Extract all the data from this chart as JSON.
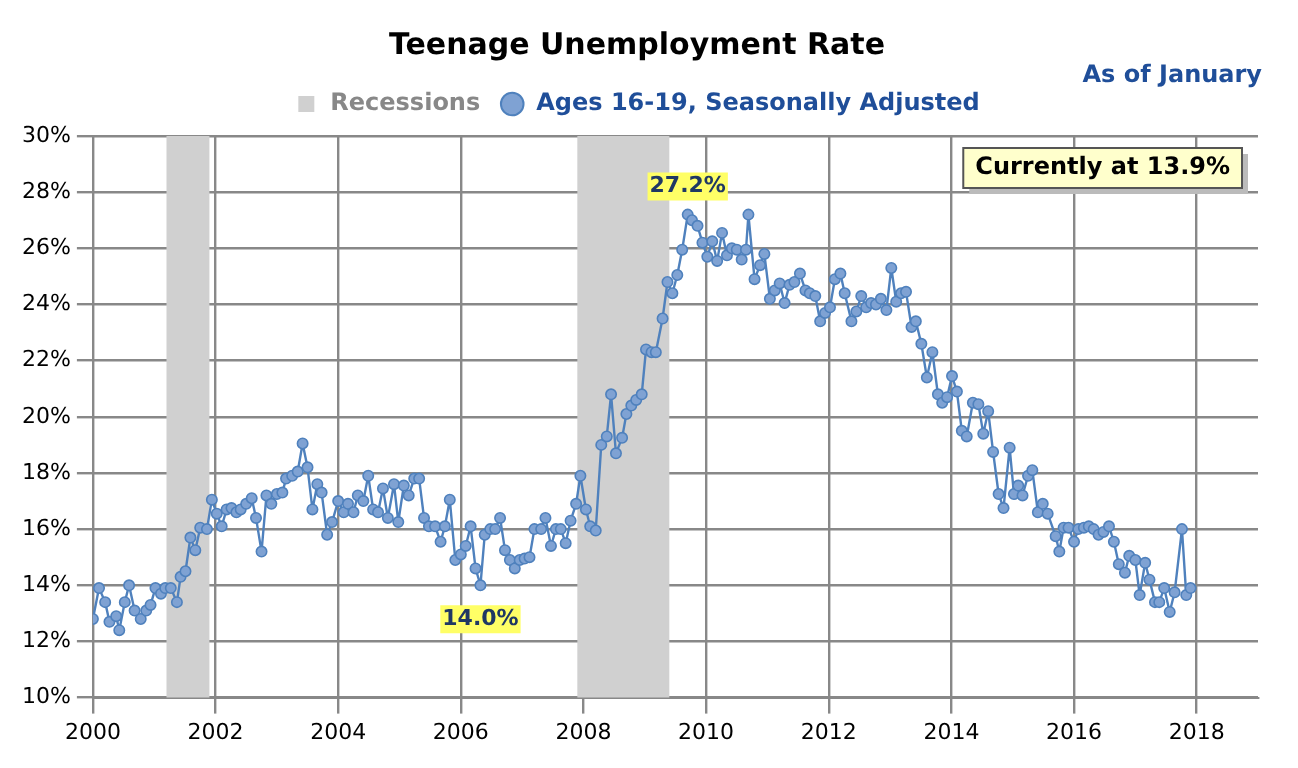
{
  "chart_data": {
    "type": "line",
    "title": "Teenage Unemployment Rate",
    "subtitle": "As of January",
    "annotations": [
      {
        "text": "14.0%",
        "x": 2006.32,
        "y": 14.0
      },
      {
        "text": "27.2%",
        "x": 2009.7,
        "y": 27.2
      },
      "Currently at 13.9%"
    ],
    "bands": [
      {
        "axis": "x",
        "from": 2001.2,
        "to": 2001.9,
        "label": "Recessions",
        "color": "#d0d0d0"
      },
      {
        "axis": "x",
        "from": 2007.9,
        "to": 2009.4,
        "color": "#d0d0d0"
      }
    ],
    "series": [
      {
        "name": "Ages 16-19, Seasonally Adjusted",
        "color": "#4f81bd",
        "x": [
          2000.0,
          2000.1,
          2000.2,
          2000.27,
          2000.38,
          2000.43,
          2000.52,
          2000.59,
          2000.68,
          2000.78,
          2000.87,
          2000.94,
          2001.02,
          2001.11,
          2001.18,
          2001.27,
          2001.37,
          2001.43,
          2001.51,
          2001.59,
          2001.67,
          2001.75,
          2001.86,
          2001.94,
          2002.02,
          2002.1,
          2002.18,
          2002.26,
          2002.34,
          2002.41,
          2002.5,
          2002.59,
          2002.66,
          2002.75,
          2002.83,
          2002.91,
          2003.0,
          2003.09,
          2003.15,
          2003.25,
          2003.34,
          2003.42,
          2003.5,
          2003.58,
          2003.66,
          2003.73,
          2003.82,
          2003.9,
          2004.0,
          2004.09,
          2004.16,
          2004.25,
          2004.32,
          2004.41,
          2004.49,
          2004.57,
          2004.65,
          2004.73,
          2004.81,
          2004.91,
          2004.98,
          2005.07,
          2005.15,
          2005.24,
          2005.32,
          2005.4,
          2005.48,
          2005.58,
          2005.67,
          2005.74,
          2005.82,
          2005.91,
          2006.0,
          2006.08,
          2006.16,
          2006.24,
          2006.32,
          2006.39,
          2006.48,
          2006.56,
          2006.64,
          2006.72,
          2006.8,
          2006.88,
          2006.96,
          2007.04,
          2007.12,
          2007.2,
          2007.31,
          2007.38,
          2007.47,
          2007.55,
          2007.63,
          2007.71,
          2007.79,
          2007.88,
          2007.95,
          2008.04,
          2008.11,
          2008.2,
          2008.29,
          2008.38,
          2008.45,
          2008.53,
          2008.63,
          2008.7,
          2008.78,
          2008.86,
          2008.95,
          2009.02,
          2009.11,
          2009.18,
          2009.29,
          2009.37,
          2009.45,
          2009.53,
          2009.61,
          2009.7,
          2009.77,
          2009.86,
          2009.94,
          2010.02,
          2010.1,
          2010.18,
          2010.26,
          2010.34,
          2010.42,
          2010.5,
          2010.58,
          2010.65,
          2010.69,
          2010.79,
          2010.88,
          2010.95,
          2011.04,
          2011.12,
          2011.2,
          2011.28,
          2011.36,
          2011.44,
          2011.53,
          2011.62,
          2011.69,
          2011.78,
          2011.86,
          2011.94,
          2012.02,
          2012.1,
          2012.19,
          2012.26,
          2012.37,
          2012.45,
          2012.53,
          2012.61,
          2012.69,
          2012.77,
          2012.85,
          2012.94,
          2013.02,
          2013.1,
          2013.18,
          2013.26,
          2013.35,
          2013.42,
          2013.51,
          2013.6,
          2013.69,
          2013.78,
          2013.85,
          2013.93,
          2014.01,
          2014.09,
          2014.17,
          2014.25,
          2014.35,
          2014.44,
          2014.52,
          2014.6,
          2014.68,
          2014.77,
          2014.85,
          2014.95,
          2015.02,
          2015.09,
          2015.16,
          2015.25,
          2015.32,
          2015.41,
          2015.49,
          2015.57,
          2015.7,
          2015.76,
          2015.83,
          2015.91,
          2016.0,
          2016.07,
          2016.16,
          2016.24,
          2016.32,
          2016.4,
          2016.48,
          2016.57,
          2016.65,
          2016.73,
          2016.83,
          2016.9,
          2017.0,
          2017.07,
          2017.16,
          2017.23,
          2017.32,
          2017.39,
          2017.47,
          2017.56,
          2017.64,
          2017.76,
          2017.83,
          2017.9
        ],
        "values": [
          12.8,
          13.9,
          13.4,
          12.7,
          12.9,
          12.4,
          13.4,
          14.0,
          13.1,
          12.8,
          13.1,
          13.3,
          13.9,
          13.7,
          13.9,
          13.9,
          13.4,
          14.3,
          14.5,
          15.7,
          15.25,
          16.05,
          16.0,
          17.05,
          16.55,
          16.1,
          16.7,
          16.75,
          16.6,
          16.7,
          16.9,
          17.1,
          16.4,
          15.2,
          17.2,
          16.9,
          17.25,
          17.3,
          17.8,
          17.9,
          18.05,
          19.05,
          18.2,
          16.7,
          17.6,
          17.3,
          15.8,
          16.25,
          17.0,
          16.6,
          16.9,
          16.6,
          17.2,
          17.0,
          17.9,
          16.7,
          16.6,
          17.45,
          16.4,
          17.6,
          16.25,
          17.55,
          17.2,
          17.8,
          17.8,
          16.4,
          16.1,
          16.1,
          15.55,
          16.1,
          17.05,
          14.9,
          15.1,
          15.4,
          16.1,
          14.6,
          14.0,
          15.8,
          16.0,
          16.0,
          16.4,
          15.25,
          14.9,
          14.6,
          14.9,
          14.95,
          15.0,
          16.0,
          16.0,
          16.4,
          15.4,
          16.0,
          16.0,
          15.5,
          16.3,
          16.9,
          17.9,
          16.7,
          16.1,
          15.95,
          19.0,
          19.3,
          20.8,
          18.7,
          19.25,
          20.1,
          20.4,
          20.6,
          20.8,
          22.4,
          22.3,
          22.3,
          23.5,
          24.8,
          24.4,
          25.05,
          25.95,
          27.2,
          27.0,
          26.8,
          26.2,
          25.7,
          26.25,
          25.55,
          26.55,
          25.75,
          26.0,
          25.95,
          25.6,
          25.95,
          27.2,
          24.9,
          25.4,
          25.8,
          24.2,
          24.5,
          24.75,
          24.05,
          24.7,
          24.8,
          25.1,
          24.5,
          24.4,
          24.3,
          23.4,
          23.7,
          23.9,
          24.9,
          25.1,
          24.4,
          23.4,
          23.75,
          24.3,
          23.9,
          24.05,
          24.0,
          24.2,
          23.8,
          25.3,
          24.1,
          24.4,
          24.45,
          23.2,
          23.4,
          22.6,
          21.4,
          22.3,
          20.8,
          20.5,
          20.7,
          21.45,
          20.9,
          19.5,
          19.3,
          20.5,
          20.45,
          19.4,
          20.2,
          18.75,
          17.25,
          16.75,
          18.9,
          17.25,
          17.55,
          17.2,
          17.9,
          18.1,
          16.6,
          16.9,
          16.55,
          15.75,
          15.2,
          16.05,
          16.05,
          15.55,
          16.0,
          16.05,
          16.1,
          16.0,
          15.8,
          15.9,
          16.1,
          15.55,
          14.75,
          14.45,
          15.05,
          14.9,
          13.65,
          14.8,
          14.2,
          13.4,
          13.4,
          13.9,
          13.05,
          13.75,
          16.0,
          13.65,
          13.9
        ]
      }
    ],
    "xlim": [
      2000,
      2019
    ],
    "xticks": [
      2000,
      2002,
      2004,
      2006,
      2008,
      2010,
      2012,
      2014,
      2016,
      2018
    ],
    "ylim": [
      10,
      30
    ],
    "yticks": [
      {
        "value": 10,
        "label": "10%"
      },
      {
        "value": 12,
        "label": "12%"
      },
      {
        "value": 14,
        "label": "14%"
      },
      {
        "value": 16,
        "label": "16%"
      },
      {
        "value": 18,
        "label": "18%"
      },
      {
        "value": 20,
        "label": "20%"
      },
      {
        "value": 22,
        "label": "22%"
      },
      {
        "value": 24,
        "label": "24%"
      },
      {
        "value": 26,
        "label": "26%"
      },
      {
        "value": 28,
        "label": "28%"
      },
      {
        "value": 30,
        "label": "30%"
      }
    ],
    "grid": true,
    "legend": "top",
    "marker": "circle",
    "line_style": "solid"
  }
}
